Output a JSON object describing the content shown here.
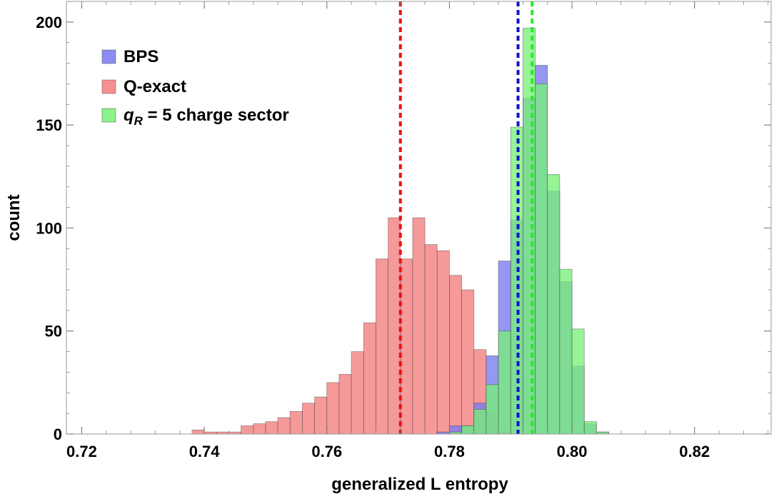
{
  "chart_data": {
    "type": "histogram",
    "title": "",
    "xlabel": "generalized L entropy",
    "ylabel": "count",
    "xlim": [
      0.7175,
      0.8325
    ],
    "ylim": [
      0,
      210
    ],
    "xticks": [
      0.72,
      0.74,
      0.76,
      0.78,
      0.8,
      0.82
    ],
    "xtick_labels": [
      "0.72",
      "0.74",
      "0.76",
      "0.78",
      "0.80",
      "0.82"
    ],
    "yticks": [
      0,
      50,
      100,
      150,
      200
    ],
    "ytick_labels": [
      "0",
      "50",
      "100",
      "150",
      "200"
    ],
    "bin_width": 0.002,
    "legend_position": "top-left",
    "series": [
      {
        "name": "BPS",
        "color": "#7878f0",
        "bin_starts": [
          0.778,
          0.78,
          0.782,
          0.784,
          0.786,
          0.788,
          0.79,
          0.792,
          0.794,
          0.796,
          0.798,
          0.8,
          0.802,
          0.804
        ],
        "counts": [
          1,
          4,
          4,
          15,
          38,
          84,
          104,
          163,
          179,
          118,
          74,
          33,
          5,
          1
        ],
        "mean": 0.7912
      },
      {
        "name": "Q-exact",
        "color": "#f47c7c",
        "bin_starts": [
          0.738,
          0.74,
          0.742,
          0.744,
          0.746,
          0.748,
          0.75,
          0.752,
          0.754,
          0.756,
          0.758,
          0.76,
          0.762,
          0.764,
          0.766,
          0.768,
          0.77,
          0.772,
          0.774,
          0.776,
          0.778,
          0.78,
          0.782,
          0.784,
          0.786,
          0.788
        ],
        "counts": [
          2,
          1,
          1,
          1,
          4,
          5,
          6,
          8,
          11,
          15,
          18,
          25,
          29,
          40,
          54,
          85,
          105,
          85,
          105,
          92,
          89,
          77,
          70,
          41,
          11,
          1
        ],
        "mean": 0.772
      },
      {
        "name": "q_R = 5 charge sector",
        "color": "#78f078",
        "bin_starts": [
          0.78,
          0.782,
          0.784,
          0.786,
          0.788,
          0.79,
          0.792,
          0.794,
          0.796,
          0.798,
          0.8,
          0.802,
          0.804
        ],
        "counts": [
          1,
          4,
          12,
          24,
          50,
          149,
          197,
          170,
          126,
          80,
          51,
          6,
          1
        ],
        "mean": 0.7935
      }
    ],
    "mean_lines": [
      {
        "series": "Q-exact",
        "x": 0.772,
        "color": "#ee1111"
      },
      {
        "series": "BPS",
        "x": 0.7912,
        "color": "#1111cc"
      },
      {
        "series": "q_R = 5 charge sector",
        "x": 0.7935,
        "color": "#22ee22"
      }
    ]
  },
  "legend": {
    "bps": "BPS",
    "q_exact": "Q-exact",
    "qr_symbol": "q",
    "qr_subscript": "R",
    "qr_rest": " = 5 charge sector"
  }
}
